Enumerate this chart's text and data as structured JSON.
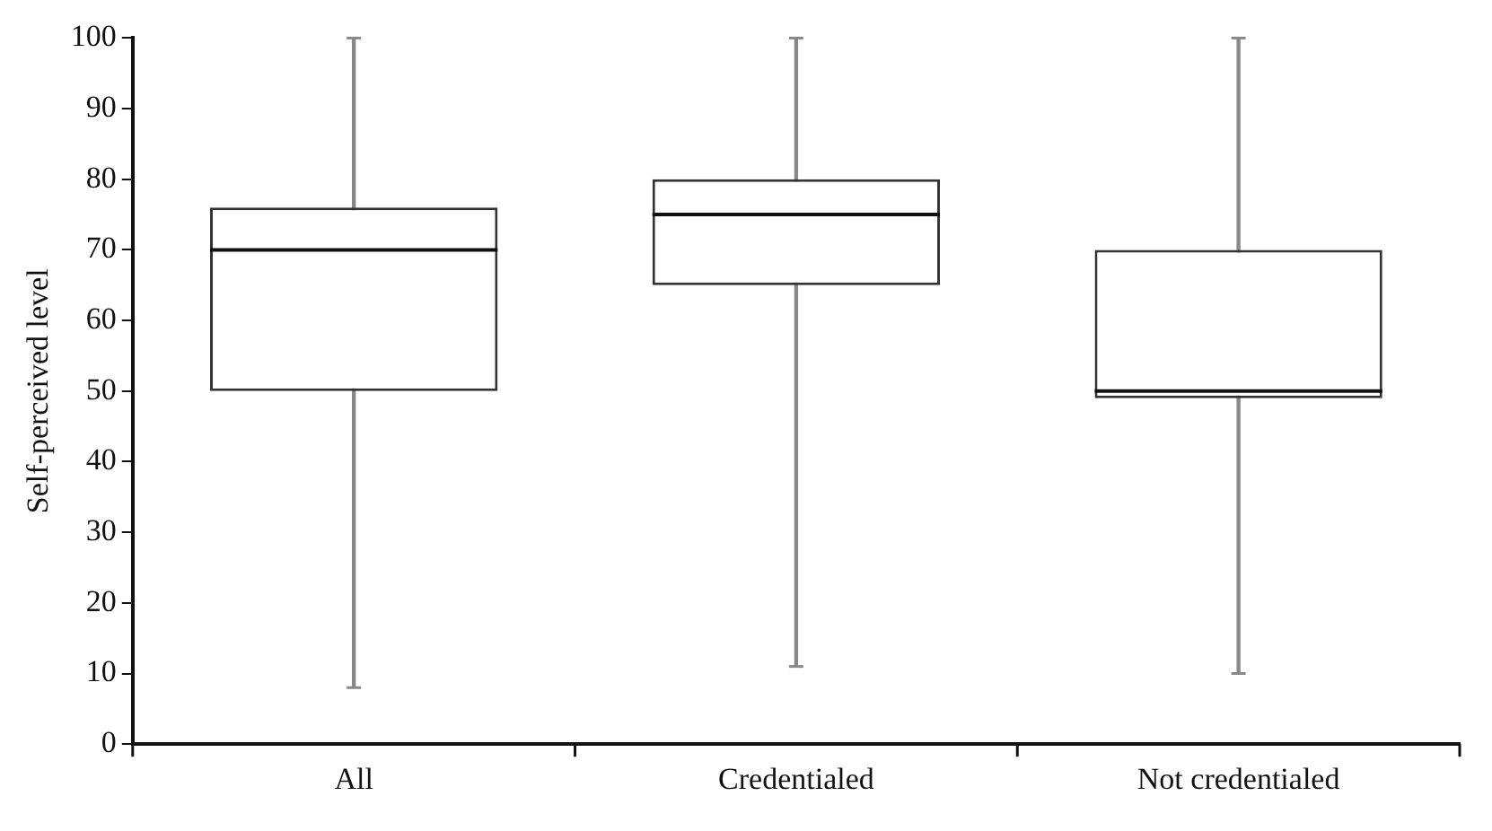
{
  "chart_data": {
    "type": "box",
    "ylabel": "Self-perceived level",
    "categories": [
      "All",
      "Credentialed",
      "Not credentialed"
    ],
    "boxes": [
      {
        "low": 8,
        "q1": 50,
        "median": 70,
        "q3": 76,
        "high": 100
      },
      {
        "low": 11,
        "q1": 65,
        "median": 75,
        "q3": 80,
        "high": 100
      },
      {
        "low": 10,
        "q1": 49,
        "median": 50,
        "q3": 70,
        "high": 100
      }
    ],
    "ylim": [
      0,
      100
    ],
    "yticks": [
      0,
      10,
      20,
      30,
      40,
      50,
      60,
      70,
      80,
      90,
      100
    ],
    "grid": false,
    "legend": false
  }
}
